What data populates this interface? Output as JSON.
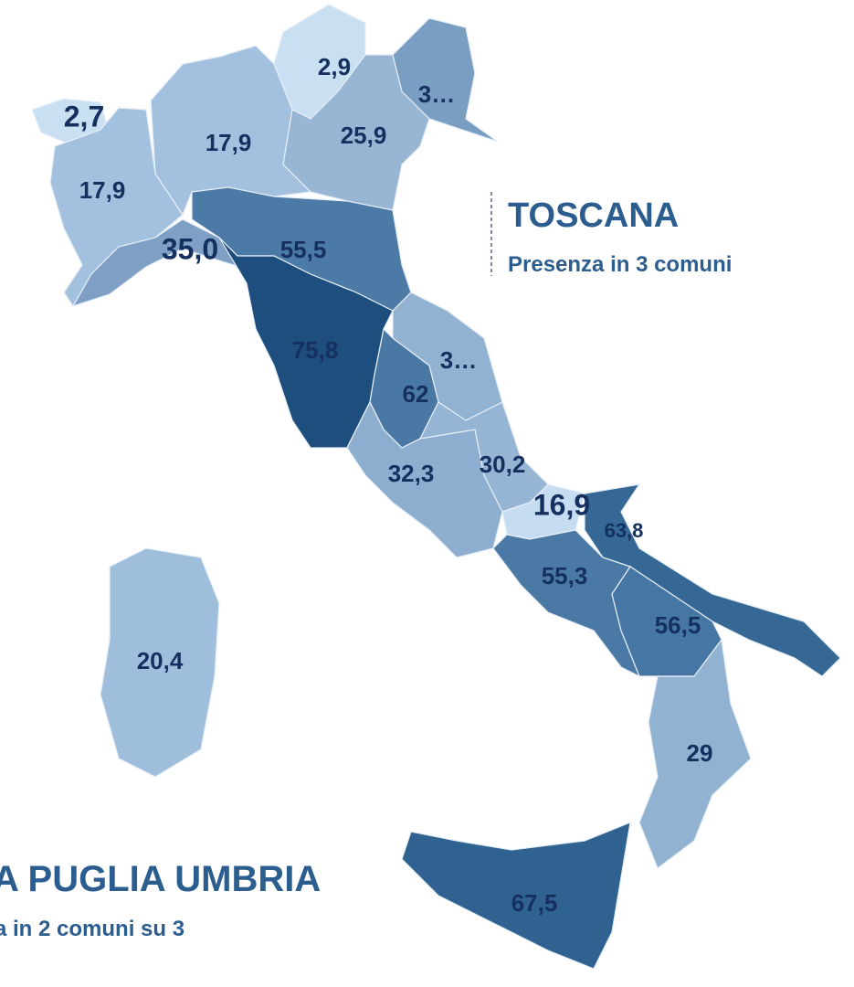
{
  "regions": [
    {
      "label": "2,7",
      "color": "#c9dff2"
    },
    {
      "label": "17,9",
      "color": "#a3c1de"
    },
    {
      "label": "17,9",
      "color": "#a3c1de"
    },
    {
      "label": "2,9",
      "color": "#c9dff2"
    },
    {
      "label": "25,9",
      "color": "#98b6d4"
    },
    {
      "label": "3…",
      "color": "#7a9dc2"
    },
    {
      "label": "35,0",
      "color": "#7f9fc4"
    },
    {
      "label": "55,5",
      "color": "#4b7aa6"
    },
    {
      "label": "75,8",
      "color": "#1d4e7d"
    },
    {
      "label": "3…",
      "color": "#92b2d2"
    },
    {
      "label": "62",
      "color": "#4a78a4"
    },
    {
      "label": "32,3",
      "color": "#8eaed0"
    },
    {
      "label": "30,2",
      "color": "#96b5d4"
    },
    {
      "label": "16,9",
      "color": "#c6dcf0"
    },
    {
      "label": "63,8",
      "color": "#356894"
    },
    {
      "label": "55,3",
      "color": "#4a79a5"
    },
    {
      "label": "56,5",
      "color": "#4676a3"
    },
    {
      "label": "29",
      "color": "#92b2d2"
    },
    {
      "label": "67,5",
      "color": "#2f6290"
    },
    {
      "label": "20,4",
      "color": "#9fbedb"
    }
  ],
  "annotations": {
    "right_title": "TOSCANA",
    "right_subtitle": "Presenza in 3 comuni",
    "bottom_title": "A PUGLIA UMBRIA",
    "bottom_subtitle": "a in 2 comuni su 3"
  }
}
